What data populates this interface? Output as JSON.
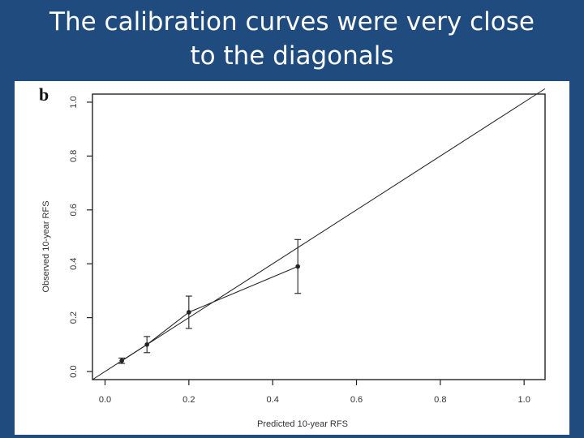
{
  "slide": {
    "title_line1": "The calibration curves were very close",
    "title_line2": "to the diagonals"
  },
  "chart_data": {
    "type": "line",
    "panel_label": "b",
    "xlabel": "Predicted 10-year RFS",
    "ylabel": "Observed 10-year RFS",
    "xlim": [
      -0.03,
      1.05
    ],
    "ylim": [
      -0.03,
      1.03
    ],
    "x_ticks": [
      0.0,
      0.2,
      0.4,
      0.6,
      0.8,
      1.0
    ],
    "x_tick_labels": [
      "0.0",
      "0.2",
      "0.4",
      "0.6",
      "0.8",
      "1.0"
    ],
    "y_ticks": [
      0.0,
      0.2,
      0.4,
      0.6,
      0.8,
      1.0
    ],
    "y_tick_labels": [
      "0.0",
      "0.2",
      "0.4",
      "0.6",
      "0.8",
      "1.0"
    ],
    "grid": false,
    "reference_line": [
      [
        -0.03,
        -0.03
      ],
      [
        1.05,
        1.05
      ]
    ],
    "series": [
      {
        "x": [
          0.04,
          0.1,
          0.2,
          0.46
        ],
        "y": [
          0.04,
          0.1,
          0.22,
          0.39
        ],
        "err_low": [
          0.03,
          0.07,
          0.16,
          0.29
        ],
        "err_high": [
          0.05,
          0.13,
          0.28,
          0.49
        ]
      }
    ],
    "line_color": "#222222"
  }
}
